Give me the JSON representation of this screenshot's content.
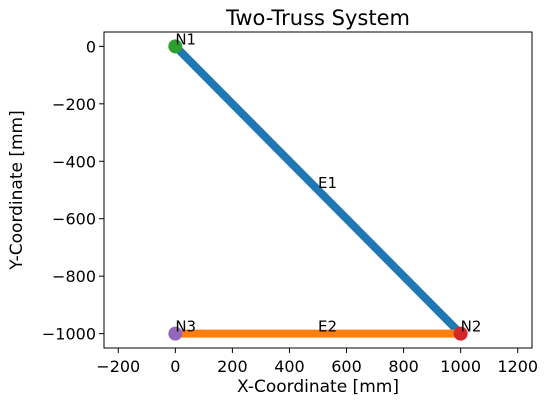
{
  "chart_data": {
    "type": "line",
    "title": "Two-Truss System",
    "xlabel": "X-Coordinate [mm]",
    "ylabel": "Y-Coordinate [mm]",
    "xlim": [
      -250,
      1250
    ],
    "ylim": [
      -1050,
      50
    ],
    "xticks": [
      {
        "value": -200,
        "label": "−200"
      },
      0,
      200,
      400,
      600,
      800,
      1000,
      1200
    ],
    "yticks": [
      {
        "value": -1000,
        "label": "−1000"
      },
      {
        "value": -800,
        "label": "−800"
      },
      {
        "value": -600,
        "label": "−600"
      },
      {
        "value": -400,
        "label": "−400"
      },
      {
        "value": -200,
        "label": "−200"
      },
      0
    ],
    "grid": false,
    "series": [
      {
        "name": "E1",
        "color": "#1f77b4",
        "x": [
          0,
          1000
        ],
        "values": [
          0,
          -1000
        ]
      },
      {
        "name": "E2",
        "color": "#ff7f0e",
        "x": [
          0,
          1000
        ],
        "values": [
          -1000,
          -1000
        ]
      }
    ],
    "nodes": [
      {
        "name": "N1",
        "color": "#2ca02c",
        "x": 0,
        "y": 0
      },
      {
        "name": "N2",
        "color": "#d62728",
        "x": 1000,
        "y": -1000
      },
      {
        "name": "N3",
        "color": "#9467bd",
        "x": 0,
        "y": -1000
      }
    ]
  }
}
